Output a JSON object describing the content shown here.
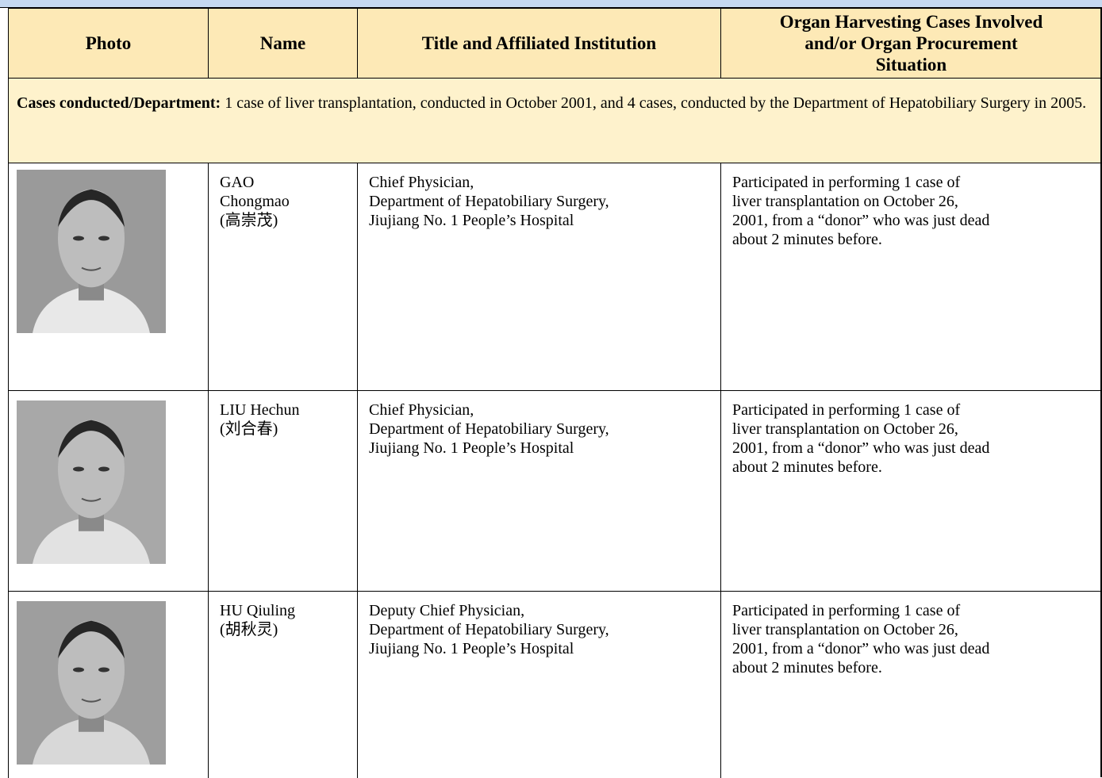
{
  "header": {
    "columns": [
      [
        "Photo"
      ],
      [
        "Name"
      ],
      [
        "Title and Affiliated Institution"
      ],
      [
        "Organ Harvesting Cases Involved",
        "and/or Organ Procurement",
        "Situation"
      ]
    ]
  },
  "section": {
    "label": "Cases conducted/Department:",
    "text": "1 case of liver transplantation, conducted in October 2001, and 4 cases, conducted by the Department of Hepatobiliary Surgery in 2005."
  },
  "rows": [
    {
      "name": [
        "GAO",
        "Chongmao",
        "(高崇茂)"
      ],
      "title": [
        "Chief Physician,",
        "Department of Hepatobiliary Surgery,",
        "Jiujiang No. 1 People’s Hospital"
      ],
      "situation": [
        "Participated in performing 1 case of",
        "liver transplantation on October 26,",
        "2001, from a “donor” who was just dead",
        "about 2 minutes before."
      ]
    },
    {
      "name": [
        "LIU Hechun",
        "(刘合春)"
      ],
      "title": [
        "Chief Physician,",
        "Department of Hepatobiliary Surgery,",
        "Jiujiang No. 1 People’s Hospital"
      ],
      "situation": [
        "Participated in performing 1 case of",
        "liver transplantation on October 26,",
        "2001, from a “donor” who was just dead",
        "about 2 minutes before."
      ]
    },
    {
      "name": [
        "HU Qiuling",
        "(胡秋灵)"
      ],
      "title": [
        "Deputy Chief Physician,",
        "Department of Hepatobiliary Surgery,",
        "Jiujiang No. 1 People’s Hospital"
      ],
      "situation": [
        "Participated in performing 1 case of",
        "liver transplantation on October 26,",
        "2001, from a “donor” who was just dead",
        "about 2 minutes before."
      ]
    }
  ]
}
